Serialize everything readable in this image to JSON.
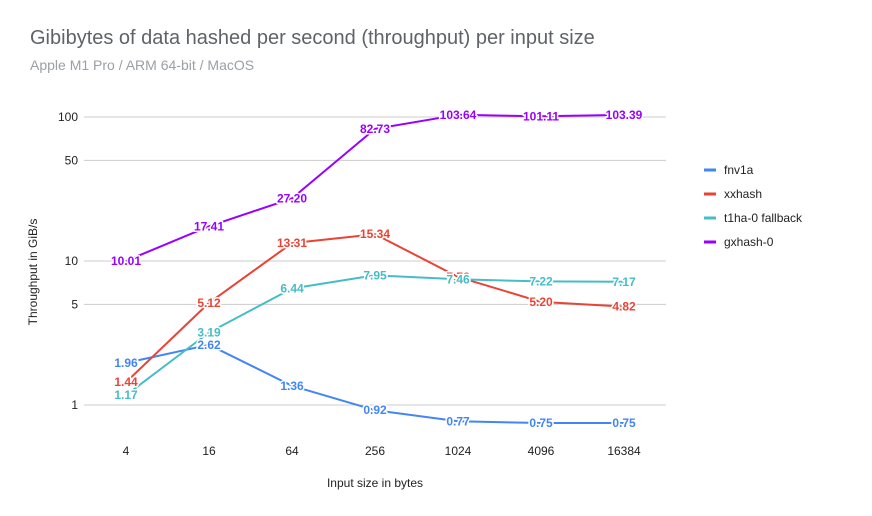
{
  "chart_data": {
    "type": "line",
    "title": "Gibibytes of data hashed per second (throughput) per input size",
    "subtitle": "Apple M1 Pro / ARM 64-bit / MacOS",
    "xlabel": "Input size in bytes",
    "ylabel": "Throughput in GiB/s",
    "yscale": "log",
    "ylim": [
      0.5,
      100
    ],
    "yticks": [
      1,
      5,
      10,
      50,
      100
    ],
    "ytick_labels": [
      "1",
      "5",
      "10",
      "50",
      "100"
    ],
    "grid": true,
    "legend_position": "right",
    "categories": [
      "4",
      "16",
      "64",
      "256",
      "1024",
      "4096",
      "16384"
    ],
    "series": [
      {
        "name": "fnv1a",
        "color": "#4285f4",
        "values": [
          1.96,
          2.62,
          1.36,
          0.92,
          0.77,
          0.75,
          0.75
        ],
        "labels": [
          "1.96",
          "2.62",
          "1.36",
          "0.92",
          "0.77",
          "0.75",
          "0.75"
        ]
      },
      {
        "name": "xxhash",
        "color": "#ea4335",
        "values": [
          1.44,
          5.12,
          13.31,
          15.34,
          7.76,
          5.2,
          4.82
        ],
        "labels": [
          "1.44",
          "5.12",
          "13.31",
          "15.34",
          "7.76",
          "5.20",
          "4.82"
        ]
      },
      {
        "name": "t1ha-0 fallback",
        "color": "#46bdc6",
        "values": [
          1.17,
          3.19,
          6.44,
          7.95,
          7.46,
          7.22,
          7.17
        ],
        "labels": [
          "1.17",
          "3.19",
          "6.44",
          "7.95",
          "7.46",
          "7.22",
          "7.17"
        ]
      },
      {
        "name": "gxhash-0",
        "color": "#9900ff",
        "values": [
          10.01,
          17.41,
          27.2,
          82.73,
          103.64,
          101.11,
          103.39
        ],
        "labels": [
          "10.01",
          "17.41",
          "27.20",
          "82.73",
          "103.64",
          "101.11",
          "103.39"
        ]
      }
    ]
  }
}
